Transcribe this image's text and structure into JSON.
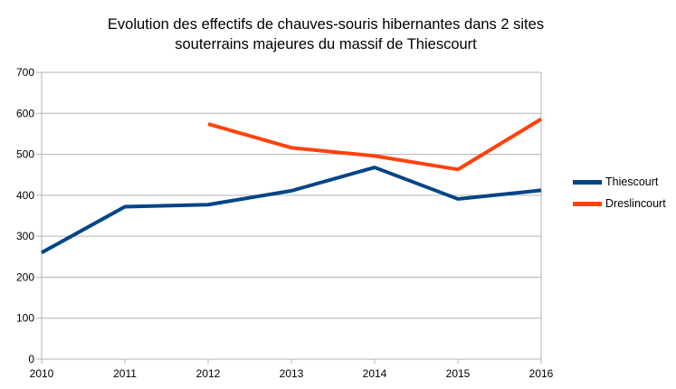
{
  "chart_data": {
    "type": "line",
    "title_lines": [
      "Evolution des effectifs de chauves-souris hibernantes dans 2 sites",
      "souterrains majeures du massif de Thiescourt"
    ],
    "x": [
      2010,
      2011,
      2012,
      2013,
      2014,
      2015,
      2016
    ],
    "x_tick_labels": [
      "2010",
      "2011",
      "2012",
      "2013",
      "2014",
      "2015",
      "2016"
    ],
    "ylim": [
      0,
      700
    ],
    "y_ticks": [
      0,
      100,
      200,
      300,
      400,
      500,
      600,
      700
    ],
    "y_tick_labels": [
      "0",
      "100",
      "200",
      "300",
      "400",
      "500",
      "600",
      "700"
    ],
    "grid": "horizontal",
    "legend_position": "right",
    "series": [
      {
        "name": "Thiescourt",
        "color": "#004586",
        "values": [
          260,
          372,
          377,
          411,
          468,
          391,
          412
        ]
      },
      {
        "name": "Dreslincourt",
        "color": "#ff420e",
        "values": [
          null,
          null,
          574,
          516,
          496,
          463,
          586
        ]
      }
    ]
  }
}
